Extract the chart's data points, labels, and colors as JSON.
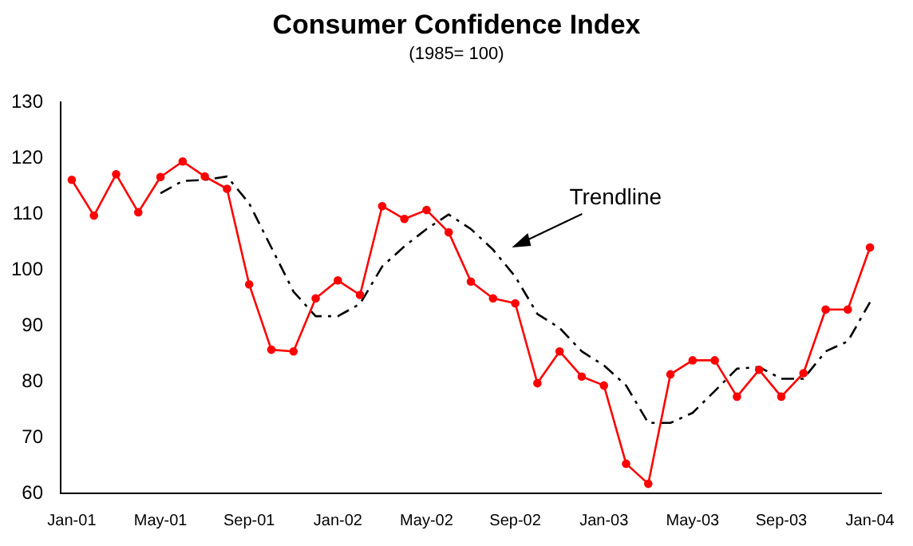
{
  "chart_data": {
    "type": "line",
    "title": "Consumer Confidence Index",
    "subtitle": "(1985= 100)",
    "categories": [
      "Jan-01",
      null,
      null,
      null,
      "May-01",
      null,
      null,
      null,
      "Sep-01",
      null,
      null,
      null,
      "Jan-02",
      null,
      null,
      null,
      "May-02",
      null,
      null,
      null,
      "Sep-02",
      null,
      null,
      null,
      "Jan-03",
      null,
      null,
      null,
      "May-03",
      null,
      null,
      null,
      "Sep-03",
      null,
      null,
      null,
      "Jan-04"
    ],
    "series": [
      {
        "color": "#ff0000",
        "marker": "circle",
        "line_style": "solid",
        "values": [
          116.1,
          109.7,
          117.1,
          110.3,
          116.6,
          119.4,
          116.7,
          114.5,
          97.4,
          85.7,
          85.4,
          94.9,
          98.1,
          95.5,
          111.4,
          109.1,
          110.7,
          106.7,
          97.9,
          94.9,
          94.0,
          79.7,
          85.4,
          80.9,
          79.3,
          65.3,
          61.7,
          81.3,
          83.8,
          83.8,
          77.3,
          82.1,
          77.3,
          81.5,
          92.9,
          92.9,
          104.0
        ]
      },
      {
        "color": "#000000",
        "marker": "none",
        "line_style": "dashed",
        "values": [
          null,
          null,
          null,
          null,
          113.7,
          115.9,
          116.1,
          116.7,
          111.9,
          104.0,
          96.1,
          91.7,
          91.7,
          93.9,
          100.6,
          104.2,
          107.3,
          109.9,
          107.3,
          103.6,
          98.8,
          92.1,
          89.6,
          85.4,
          82.9,
          79.3,
          72.6,
          72.6,
          74.4,
          78.3,
          82.3,
          82.6,
          80.5,
          80.5,
          85.4,
          87.2,
          94.2
        ]
      }
    ],
    "ylim": [
      60,
      130
    ],
    "yticks": [
      60,
      70,
      80,
      90,
      100,
      110,
      120,
      130
    ],
    "grid": false,
    "legend": false,
    "annotations": [
      "Trendline"
    ]
  }
}
